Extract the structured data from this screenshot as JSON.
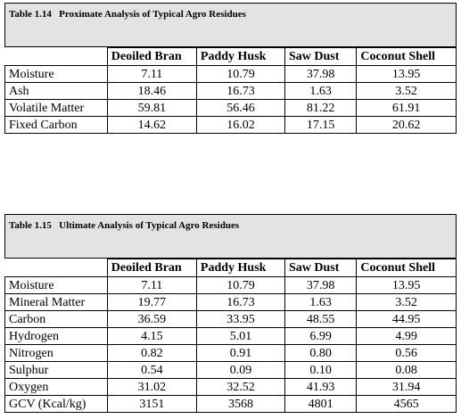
{
  "tables": [
    {
      "caption": "Table 1.14   Proximate Analysis of Typical Agro Residues",
      "columns": [
        "Deoiled Bran",
        "Paddy Husk",
        "Saw Dust",
        "Coconut Shell"
      ],
      "rows": [
        {
          "label": "Moisture",
          "values": [
            "7.11",
            "10.79",
            "37.98",
            "13.95"
          ]
        },
        {
          "label": "Ash",
          "values": [
            "18.46",
            "16.73",
            "1.63",
            "3.52"
          ]
        },
        {
          "label": "Volatile Matter",
          "values": [
            "59.81",
            "56.46",
            "81.22",
            "61.91"
          ]
        },
        {
          "label": "Fixed Carbon",
          "values": [
            "14.62",
            "16.02",
            "17.15",
            "20.62"
          ]
        }
      ]
    },
    {
      "caption": "Table 1.15   Ultimate Analysis of Typical Agro Residues",
      "columns": [
        "Deoiled Bran",
        "Paddy Husk",
        "Saw Dust",
        "Coconut Shell"
      ],
      "rows": [
        {
          "label": "Moisture",
          "values": [
            "7.11",
            "10.79",
            "37.98",
            "13.95"
          ]
        },
        {
          "label": "Mineral Matter",
          "values": [
            "19.77",
            "16.73",
            "1.63",
            "3.52"
          ]
        },
        {
          "label": "Carbon",
          "values": [
            "36.59",
            "33.95",
            "48.55",
            "44.95"
          ]
        },
        {
          "label": "Hydrogen",
          "values": [
            "4.15",
            "5.01",
            "6.99",
            "4.99"
          ]
        },
        {
          "label": "Nitrogen",
          "values": [
            "0.82",
            "0.91",
            "0.80",
            "0.56"
          ]
        },
        {
          "label": "Sulphur",
          "values": [
            "0.54",
            "0.09",
            "0.10",
            "0.08"
          ]
        },
        {
          "label": "Oxygen",
          "values": [
            "31.02",
            "32.52",
            "41.93",
            "31.94"
          ]
        },
        {
          "label": "GCV (Kcal/kg)",
          "values": [
            "3151",
            "3568",
            "4801",
            "4565"
          ]
        }
      ]
    }
  ]
}
